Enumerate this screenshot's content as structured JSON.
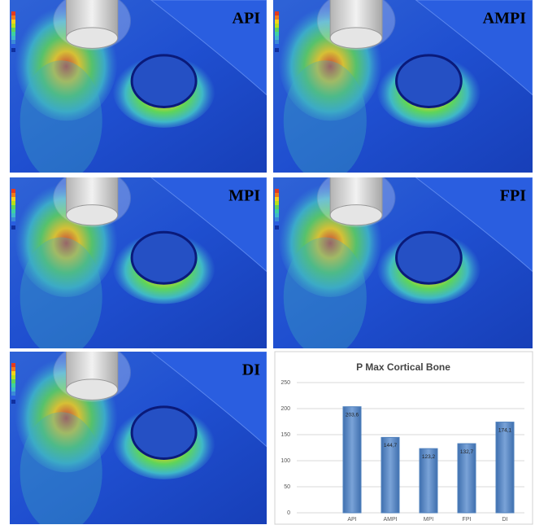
{
  "panels": [
    {
      "label": "API"
    },
    {
      "label": "AMPI"
    },
    {
      "label": "MPI"
    },
    {
      "label": "FPI"
    },
    {
      "label": "DI"
    }
  ],
  "chart_data": {
    "type": "bar",
    "title": "P Max Cortical Bone",
    "categories": [
      "API",
      "AMPI",
      "MPI",
      "FPI",
      "DI"
    ],
    "values": [
      203.6,
      144.7,
      123.2,
      132.7,
      174.1
    ],
    "value_labels": [
      "203,6",
      "144,7",
      "123,2",
      "132,7",
      "174,1"
    ],
    "color": "#4f81bd",
    "ylim": [
      0,
      250
    ],
    "yticks": [
      0,
      50,
      100,
      150,
      200,
      250
    ],
    "grid": true
  }
}
